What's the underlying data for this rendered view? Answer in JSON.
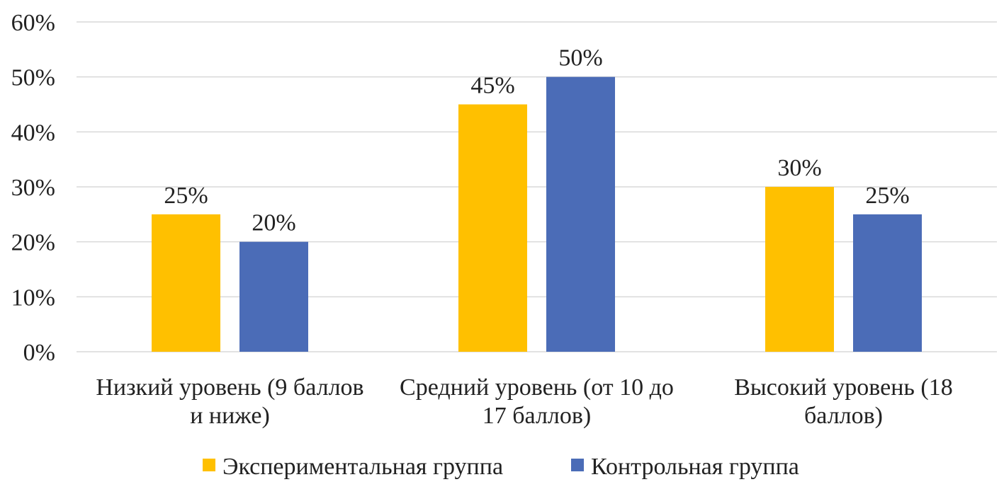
{
  "chart_data": {
    "type": "bar",
    "categories": [
      [
        "Низкий уровень (9 баллов",
        "и ниже)"
      ],
      [
        "Средний уровень (от 10 до",
        "17 баллов)"
      ],
      [
        "Высокий уровень (18",
        "баллов)"
      ]
    ],
    "series": [
      {
        "name": "Экспериментальная группа",
        "color": "#FFC000",
        "values": [
          25,
          45,
          30
        ],
        "labels": [
          "25%",
          "45%",
          "30%"
        ]
      },
      {
        "name": "Контрольная группа",
        "color": "#4B6CB7",
        "values": [
          20,
          50,
          25
        ],
        "labels": [
          "20%",
          "50%",
          "25%"
        ]
      }
    ],
    "ylim": [
      0,
      60
    ],
    "yticks": [
      "0%",
      "10%",
      "20%",
      "30%",
      "40%",
      "50%",
      "60%"
    ],
    "grid": true,
    "legend_position": "bottom",
    "title": "",
    "xlabel": "",
    "ylabel": ""
  }
}
